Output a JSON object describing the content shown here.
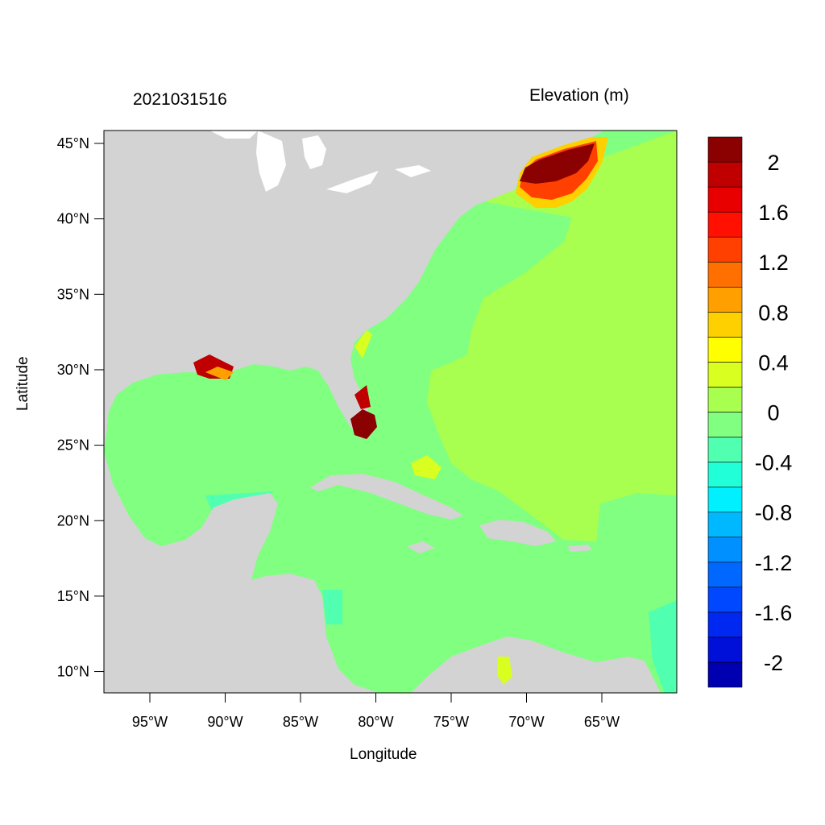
{
  "title_left": "2021031516",
  "title_right": "Elevation (m)",
  "xlabel": "Longitude",
  "ylabel": "Latitude",
  "x_ticks": [
    {
      "lon": -95,
      "label": "95°W"
    },
    {
      "lon": -90,
      "label": "90°W"
    },
    {
      "lon": -85,
      "label": "85°W"
    },
    {
      "lon": -80,
      "label": "80°W"
    },
    {
      "lon": -75,
      "label": "75°W"
    },
    {
      "lon": -70,
      "label": "70°W"
    },
    {
      "lon": -65,
      "label": "65°W"
    }
  ],
  "y_ticks": [
    {
      "lat": 45,
      "label": "45°N"
    },
    {
      "lat": 40,
      "label": "40°N"
    },
    {
      "lat": 35,
      "label": "35°N"
    },
    {
      "lat": 30,
      "label": "30°N"
    },
    {
      "lat": 25,
      "label": "25°N"
    },
    {
      "lat": 20,
      "label": "20°N"
    },
    {
      "lat": 15,
      "label": "15°N"
    },
    {
      "lat": 10,
      "label": "10°N"
    }
  ],
  "colorbar": {
    "colors": [
      "#0000b0",
      "#0010d8",
      "#0028f0",
      "#0048ff",
      "#0068ff",
      "#0090ff",
      "#00b8ff",
      "#00f0ff",
      "#20ffd8",
      "#50ffb0",
      "#80ff80",
      "#a8ff50",
      "#d8ff20",
      "#ffff00",
      "#ffd000",
      "#ffa000",
      "#ff7000",
      "#ff4000",
      "#ff1000",
      "#e80000",
      "#c00000",
      "#8b0000"
    ],
    "labels": [
      "-2",
      "-1.6",
      "-1.2",
      "-0.8",
      "-0.4",
      "0",
      "0.4",
      "0.8",
      "1.2",
      "1.6",
      "2"
    ]
  },
  "colors": {
    "land": "#d3d3d3",
    "ocean_zero": "#80ff80",
    "ocean_positive": "#a8ff50",
    "surge_high": "#8b0000"
  }
}
